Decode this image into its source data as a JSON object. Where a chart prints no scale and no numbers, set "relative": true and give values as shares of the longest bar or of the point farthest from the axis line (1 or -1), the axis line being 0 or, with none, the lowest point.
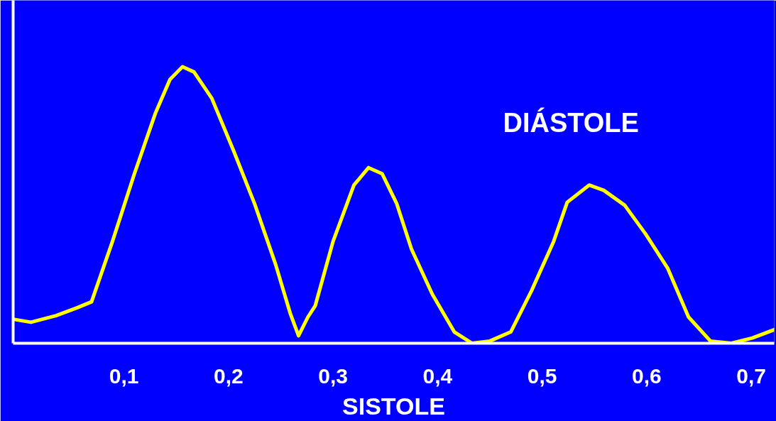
{
  "chart_data": {
    "type": "line",
    "relative": true,
    "xlabel": "SISTOLE",
    "annotations": [
      "DIÁSTOLE"
    ],
    "xlim": [
      -0.006,
      0.722
    ],
    "xticks": [
      {
        "value": 0.1,
        "label": "0,1"
      },
      {
        "value": 0.2,
        "label": "0,2"
      },
      {
        "value": 0.3,
        "label": "0,3"
      },
      {
        "value": 0.4,
        "label": "0,4"
      },
      {
        "value": 0.5,
        "label": "0,5"
      },
      {
        "value": 0.6,
        "label": "0,6"
      },
      {
        "value": 0.7,
        "label": "0,7"
      }
    ],
    "grid": false,
    "marker": "none",
    "line_style": "solid",
    "series": [
      {
        "color": "#ffff00",
        "x": [
          -0.006,
          0.011,
          0.035,
          0.055,
          0.069,
          0.089,
          0.11,
          0.13,
          0.144,
          0.156,
          0.167,
          0.184,
          0.205,
          0.225,
          0.245,
          0.259,
          0.267,
          0.276,
          0.283,
          0.3,
          0.32,
          0.334,
          0.347,
          0.361,
          0.375,
          0.395,
          0.416,
          0.433,
          0.45,
          0.47,
          0.49,
          0.511,
          0.524,
          0.545,
          0.559,
          0.579,
          0.599,
          0.62,
          0.64,
          0.661,
          0.681,
          0.701,
          0.722
        ],
        "values": [
          0.087,
          0.076,
          0.1,
          0.128,
          0.15,
          0.368,
          0.613,
          0.831,
          0.954,
          1.0,
          0.981,
          0.886,
          0.695,
          0.504,
          0.286,
          0.109,
          0.027,
          0.095,
          0.136,
          0.368,
          0.572,
          0.635,
          0.613,
          0.504,
          0.341,
          0.177,
          0.041,
          0.0,
          0.008,
          0.041,
          0.191,
          0.368,
          0.51,
          0.572,
          0.553,
          0.499,
          0.395,
          0.272,
          0.095,
          0.008,
          0.0,
          0.019,
          0.049
        ]
      }
    ]
  }
}
